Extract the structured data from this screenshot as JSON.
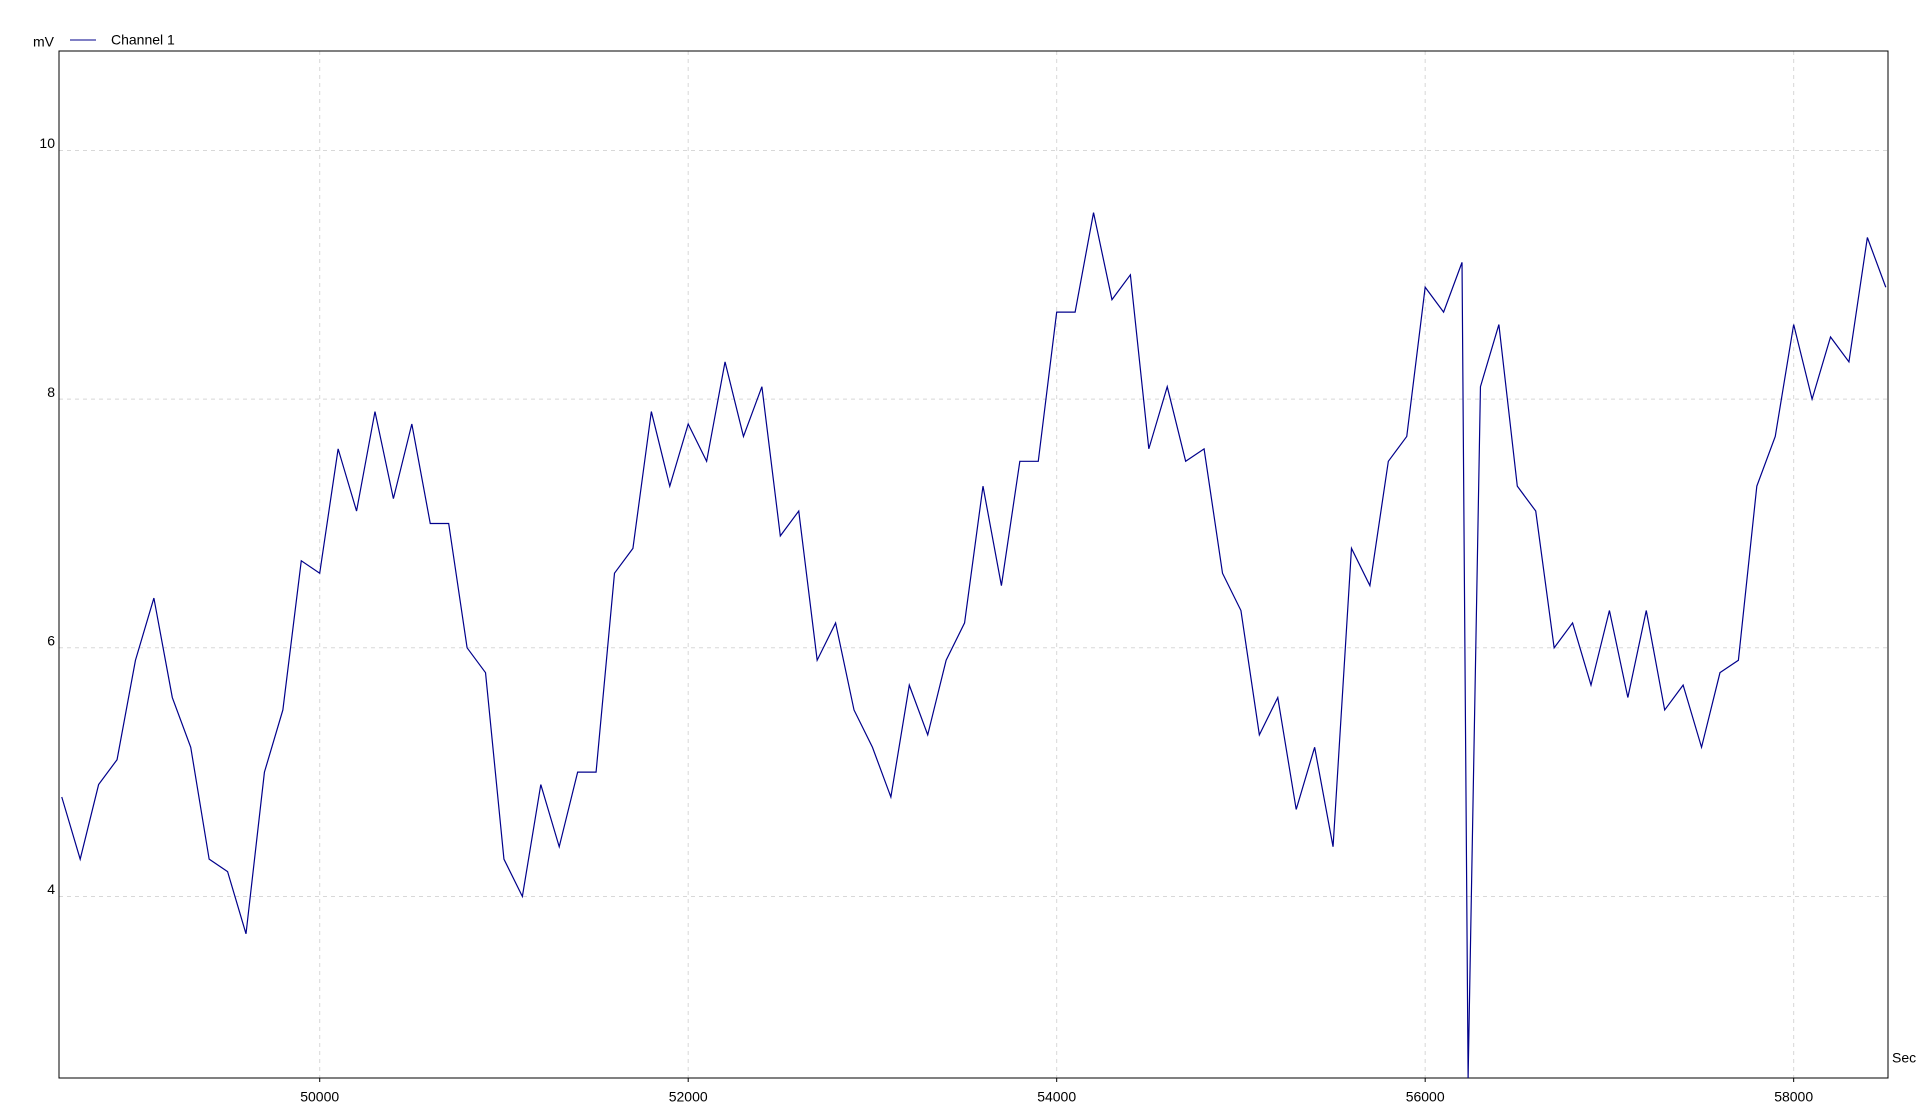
{
  "chart_data": {
    "type": "line",
    "x_label": "Sec",
    "y_label": "mV",
    "x": [
      48600,
      48700,
      48800,
      48900,
      49000,
      49100,
      49200,
      49300,
      49400,
      49500,
      49600,
      49700,
      49800,
      49900,
      50000,
      50100,
      50200,
      50300,
      50400,
      50500,
      50600,
      50700,
      50800,
      50900,
      51000,
      51100,
      51200,
      51300,
      51400,
      51500,
      51600,
      51700,
      51800,
      51900,
      52000,
      52100,
      52200,
      52300,
      52400,
      52500,
      52600,
      52700,
      52800,
      52900,
      53000,
      53100,
      53200,
      53300,
      53400,
      53500,
      53600,
      53700,
      53800,
      53900,
      54000,
      54100,
      54200,
      54300,
      54400,
      54500,
      54600,
      54700,
      54800,
      54900,
      55000,
      55100,
      55200,
      55300,
      55400,
      55500,
      55600,
      55700,
      55800,
      55900,
      56000,
      56100,
      56200,
      56233,
      56300,
      56400,
      56500,
      56600,
      56700,
      56800,
      56900,
      57000,
      57100,
      57200,
      57300,
      57400,
      57500,
      57600,
      57700,
      57800,
      57900,
      58000,
      58100,
      58200,
      58300,
      58400,
      58500
    ],
    "series": [
      {
        "name": "Channel 1",
        "color": "#00008b",
        "values": [
          4.8,
          4.3,
          4.9,
          5.1,
          5.9,
          6.4,
          5.6,
          5.2,
          4.3,
          4.2,
          3.7,
          5.0,
          5.5,
          6.7,
          6.6,
          7.6,
          7.1,
          7.9,
          7.2,
          7.8,
          7.0,
          7.0,
          6.0,
          5.8,
          4.3,
          4.0,
          4.9,
          4.4,
          5.0,
          5.0,
          6.6,
          6.8,
          7.9,
          7.3,
          7.8,
          7.5,
          8.3,
          7.7,
          8.1,
          6.9,
          7.1,
          5.9,
          6.2,
          5.5,
          5.2,
          4.8,
          5.7,
          5.3,
          5.9,
          6.2,
          7.3,
          6.5,
          7.5,
          7.5,
          8.7,
          8.7,
          9.5,
          8.8,
          9.0,
          7.6,
          8.1,
          7.5,
          7.6,
          6.6,
          6.3,
          5.3,
          5.6,
          4.7,
          5.2,
          4.4,
          6.8,
          6.5,
          7.5,
          7.7,
          8.9,
          8.7,
          9.1,
          2.54,
          8.1,
          8.6,
          7.3,
          7.1,
          6.0,
          6.2,
          5.7,
          6.3,
          5.6,
          6.3,
          5.5,
          5.7,
          5.2,
          5.8,
          5.9,
          7.3,
          7.7,
          8.6,
          8.0,
          8.5,
          8.3,
          9.3,
          8.9
        ]
      }
    ],
    "xlim": [
      48585,
      58512
    ],
    "ylim": [
      2.54,
      10.8
    ],
    "xticks": [
      50000,
      52000,
      54000,
      56000,
      58000
    ],
    "yticks": [
      4,
      6,
      8,
      10
    ],
    "grid": true
  }
}
